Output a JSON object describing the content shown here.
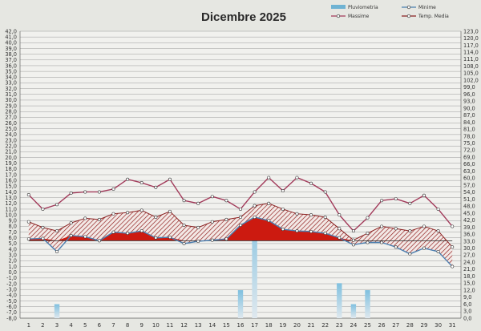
{
  "chart_data": {
    "type": "line",
    "title": "Dicembre 2025",
    "x": [
      "1",
      "2",
      "3",
      "4",
      "5",
      "6",
      "7",
      "8",
      "9",
      "10",
      "11",
      "12",
      "13",
      "14",
      "15",
      "16",
      "17",
      "18",
      "19",
      "20",
      "21",
      "22",
      "23",
      "24",
      "25",
      "26",
      "27",
      "28",
      "29",
      "30",
      "31"
    ],
    "y_left": {
      "min": -8.0,
      "max": 42.0,
      "step": 1.0,
      "ticks": [
        "42,0",
        "41,0",
        "40,0",
        "39,0",
        "38,0",
        "37,0",
        "36,0",
        "35,0",
        "34,0",
        "33,0",
        "32,0",
        "31,0",
        "30,0",
        "29,0",
        "28,0",
        "27,0",
        "26,0",
        "25,0",
        "24,0",
        "23,0",
        "22,0",
        "21,0",
        "20,0",
        "19,0",
        "18,0",
        "17,0",
        "16,0",
        "15,0",
        "14,0",
        "13,0",
        "12,0",
        "11,0",
        "10,0",
        "9,0",
        "8,0",
        "7,0",
        "6,0",
        "5,0",
        "4,0",
        "3,0",
        "2,0",
        "1,0",
        "0,0",
        "-1,0",
        "-2,0",
        "-3,0",
        "-4,0",
        "-5,0",
        "-6,0",
        "-7,0",
        "-8,0"
      ]
    },
    "y_right": {
      "min": 0.0,
      "max": 123.0,
      "step": 3.0,
      "ticks": [
        "123,0",
        "120,0",
        "117,0",
        "114,0",
        "111,0",
        "108,0",
        "105,0",
        "102,0",
        "99,0",
        "96,0",
        "93,0",
        "90,0",
        "87,0",
        "84,0",
        "81,0",
        "78,0",
        "75,0",
        "72,0",
        "69,0",
        "66,0",
        "63,0",
        "60,0",
        "57,0",
        "54,0",
        "51,0",
        "48,0",
        "45,0",
        "42,0",
        "39,0",
        "36,0",
        "33,0",
        "30,0",
        "27,0",
        "24,0",
        "21,0",
        "18,0",
        "15,0",
        "12,0",
        "9,0",
        "6,0",
        "3,0",
        "0,0"
      ]
    },
    "grid": true,
    "legend_position": "top-right",
    "colors": {
      "pluviometria": "#6fb3d3",
      "minime": "#4a7fb0",
      "massime": "#a23a5a",
      "media": "#8a2020",
      "fill": "#cc1a10",
      "hatch": "#8a1010"
    },
    "series": [
      {
        "name": "Pluviometria",
        "axis": "right",
        "type": "bar",
        "values": [
          0,
          0,
          6,
          0,
          0,
          0,
          0,
          0,
          0,
          0,
          0,
          0,
          0,
          0,
          0,
          12,
          48,
          0,
          0,
          0,
          0,
          0,
          15,
          6,
          12,
          0,
          0,
          0,
          0,
          0,
          0
        ]
      },
      {
        "name": "Minime",
        "axis": "left",
        "values": [
          5.8,
          5.9,
          3.6,
          6.4,
          6.2,
          5.5,
          7.0,
          6.8,
          7.2,
          6.0,
          6.1,
          5.0,
          5.4,
          5.6,
          5.8,
          8.2,
          9.6,
          9.0,
          7.5,
          7.2,
          7.1,
          6.8,
          6.0,
          4.8,
          5.2,
          5.2,
          4.4,
          3.2,
          4.2,
          3.6,
          1.0
        ]
      },
      {
        "name": "Massime",
        "axis": "left",
        "values": [
          13.5,
          11.0,
          11.8,
          13.8,
          14.0,
          14.0,
          14.5,
          16.2,
          15.6,
          14.8,
          16.2,
          12.5,
          12.0,
          13.2,
          12.5,
          11.0,
          14.0,
          16.5,
          14.2,
          16.5,
          15.5,
          14.0,
          10.0,
          7.2,
          9.5,
          12.5,
          12.8,
          12.0,
          13.4,
          11.0,
          8.0
        ]
      },
      {
        "name": "Temp. Media",
        "axis": "left",
        "values": [
          8.8,
          7.8,
          7.2,
          8.6,
          9.4,
          9.2,
          10.2,
          10.4,
          10.8,
          9.6,
          10.6,
          8.2,
          7.8,
          8.8,
          9.2,
          9.6,
          11.6,
          12.0,
          11.0,
          10.2,
          10.0,
          9.6,
          7.6,
          5.6,
          6.8,
          8.0,
          7.6,
          7.2,
          8.0,
          7.2,
          4.4
        ]
      }
    ],
    "fill_reference": 5.5
  }
}
